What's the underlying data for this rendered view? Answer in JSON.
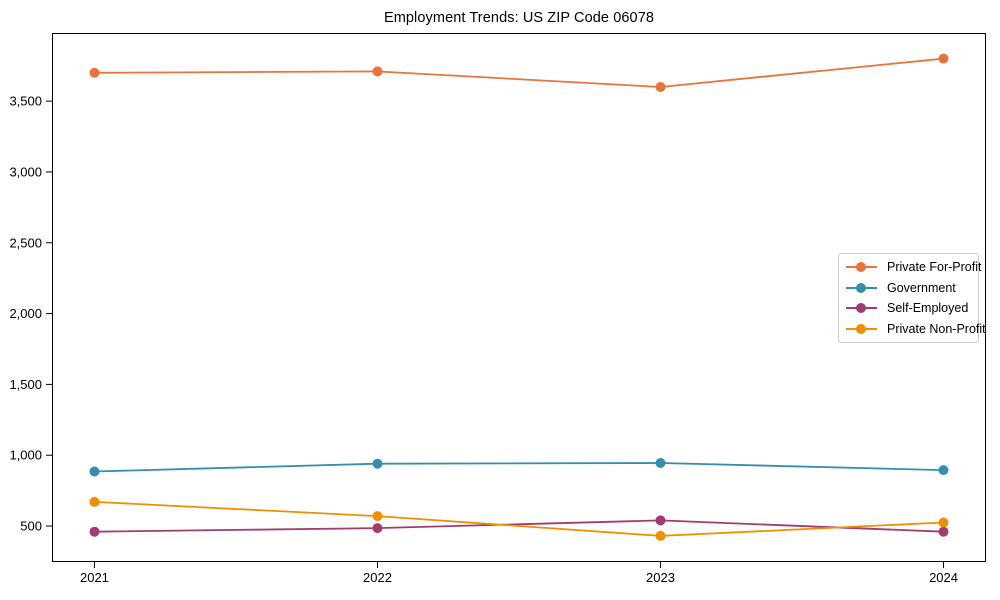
{
  "figure": {
    "background": "#ffffff",
    "axis_color": "#000000",
    "text_color": "#000000",
    "legend_border_color": "#cccccc"
  },
  "chart_data": {
    "type": "line",
    "title": "Employment Trends: US ZIP Code 06078",
    "xlabel": "",
    "ylabel": "",
    "x": [
      2021,
      2022,
      2023,
      2024
    ],
    "x_tick_labels": [
      "2021",
      "2022",
      "2023",
      "2024"
    ],
    "y_ticks": [
      500,
      1000,
      1500,
      2000,
      2500,
      3000,
      3500
    ],
    "y_tick_labels": [
      "500",
      "1,000",
      "1,500",
      "2,000",
      "2,500",
      "3,000",
      "3,500"
    ],
    "xlim": [
      2020.85,
      2024.15
    ],
    "ylim": [
      246,
      3981
    ],
    "grid": false,
    "legend_position": "center right",
    "marker": "circle",
    "series": [
      {
        "name": "Private For-Profit",
        "color": "#E8743B",
        "values": [
          3700,
          3710,
          3600,
          3800
        ]
      },
      {
        "name": "Government",
        "color": "#348EB0",
        "values": [
          885,
          940,
          945,
          895
        ]
      },
      {
        "name": "Self-Employed",
        "color": "#A23B72",
        "values": [
          460,
          485,
          540,
          460
        ]
      },
      {
        "name": "Private Non-Profit",
        "color": "#F18F01",
        "values": [
          670,
          570,
          430,
          525
        ]
      }
    ]
  }
}
